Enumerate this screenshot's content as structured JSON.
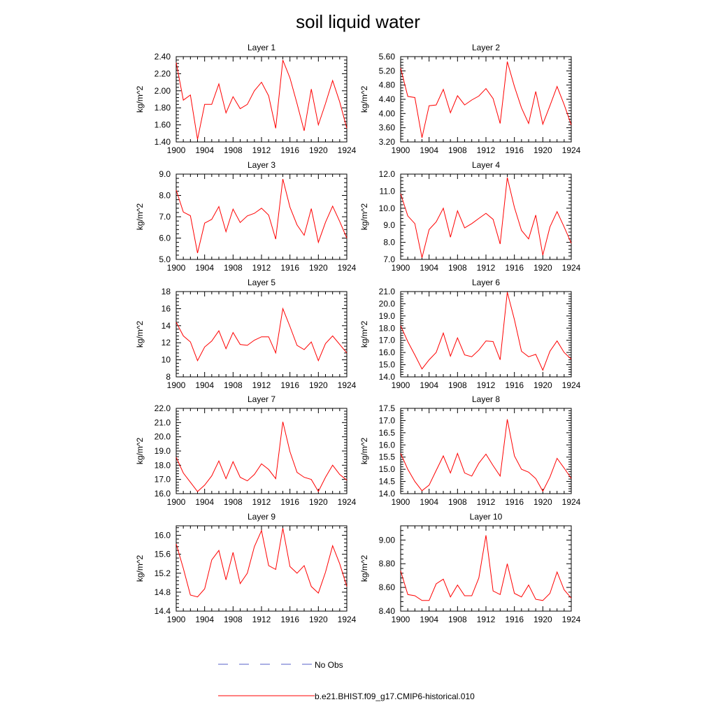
{
  "title": "soil liquid water",
  "legend": {
    "entries": [
      {
        "label": "No Obs",
        "color": "#5560c8",
        "style": "dashed"
      },
      {
        "label": "b.e21.BHIST.f09_g17.CMIP6-historical.010",
        "color": "#ff0000",
        "style": "solid"
      }
    ]
  },
  "chart_data": [
    {
      "type": "line",
      "title": "Layer 1",
      "ylabel": "kg/m^2",
      "xlim": [
        1900,
        1924
      ],
      "ylim": [
        1.4,
        2.4
      ],
      "x_ticks": [
        "1900",
        "1904",
        "1908",
        "1912",
        "1916",
        "1920",
        "1924"
      ],
      "y_ticks": [
        "1.40",
        "1.60",
        "1.80",
        "2.00",
        "2.20",
        "2.40"
      ],
      "series": [
        {
          "color": "#ff0000",
          "x": [
            1900,
            1901,
            1902,
            1903,
            1904,
            1905,
            1906,
            1907,
            1908,
            1909,
            1910,
            1911,
            1912,
            1913,
            1914,
            1915,
            1916,
            1917,
            1918,
            1919,
            1920,
            1921,
            1922,
            1923,
            1924
          ],
          "values": [
            2.33,
            1.89,
            1.95,
            1.43,
            1.84,
            1.84,
            2.08,
            1.74,
            1.93,
            1.79,
            1.84,
            2.0,
            2.1,
            1.94,
            1.56,
            2.36,
            2.15,
            1.85,
            1.53,
            2.02,
            1.6,
            1.85,
            2.12,
            1.87,
            1.56
          ]
        }
      ]
    },
    {
      "type": "line",
      "title": "Layer 2",
      "ylabel": "kg/m^2",
      "xlim": [
        1900,
        1924
      ],
      "ylim": [
        3.2,
        5.6
      ],
      "x_ticks": [
        "1900",
        "1904",
        "1908",
        "1912",
        "1916",
        "1920",
        "1924"
      ],
      "y_ticks": [
        "3.20",
        "3.60",
        "4.00",
        "4.40",
        "4.80",
        "5.20",
        "5.60"
      ],
      "series": [
        {
          "color": "#ff0000",
          "x": [
            1900,
            1901,
            1902,
            1903,
            1904,
            1905,
            1906,
            1907,
            1908,
            1909,
            1910,
            1911,
            1912,
            1913,
            1914,
            1915,
            1916,
            1917,
            1918,
            1919,
            1920,
            1921,
            1922,
            1923,
            1924
          ],
          "values": [
            5.28,
            4.48,
            4.45,
            3.32,
            4.22,
            4.24,
            4.68,
            4.02,
            4.5,
            4.24,
            4.38,
            4.49,
            4.7,
            4.42,
            3.72,
            5.46,
            4.76,
            4.16,
            3.72,
            4.62,
            3.7,
            4.22,
            4.76,
            4.25,
            3.68
          ]
        }
      ]
    },
    {
      "type": "line",
      "title": "Layer 3",
      "ylabel": "kg/m^2",
      "xlim": [
        1900,
        1924
      ],
      "ylim": [
        5,
        9
      ],
      "x_ticks": [
        "1900",
        "1904",
        "1908",
        "1912",
        "1916",
        "1920",
        "1924"
      ],
      "y_ticks": [
        "5.0",
        "6.0",
        "7.0",
        "8.0",
        "9.0"
      ],
      "series": [
        {
          "color": "#ff0000",
          "x": [
            1900,
            1901,
            1902,
            1903,
            1904,
            1905,
            1906,
            1907,
            1908,
            1909,
            1910,
            1911,
            1912,
            1913,
            1914,
            1915,
            1916,
            1917,
            1918,
            1919,
            1920,
            1921,
            1922,
            1923,
            1924
          ],
          "values": [
            8.25,
            7.22,
            7.05,
            5.3,
            6.7,
            6.88,
            7.48,
            6.3,
            7.36,
            6.73,
            7.04,
            7.16,
            7.4,
            7.08,
            5.95,
            8.77,
            7.45,
            6.62,
            6.13,
            7.38,
            5.8,
            6.74,
            7.5,
            6.78,
            6.0
          ]
        }
      ]
    },
    {
      "type": "line",
      "title": "Layer 4",
      "ylabel": "kg/m^2",
      "xlim": [
        1900,
        1924
      ],
      "ylim": [
        7,
        12
      ],
      "x_ticks": [
        "1900",
        "1904",
        "1908",
        "1912",
        "1916",
        "1920",
        "1924"
      ],
      "y_ticks": [
        "7.0",
        "8.0",
        "9.0",
        "10.0",
        "11.0",
        "12.0"
      ],
      "series": [
        {
          "color": "#ff0000",
          "x": [
            1900,
            1901,
            1902,
            1903,
            1904,
            1905,
            1906,
            1907,
            1908,
            1909,
            1910,
            1911,
            1912,
            1913,
            1914,
            1915,
            1916,
            1917,
            1918,
            1919,
            1920,
            1921,
            1922,
            1923,
            1924
          ],
          "values": [
            10.85,
            9.55,
            9.1,
            7.1,
            8.75,
            9.2,
            10.0,
            8.3,
            9.85,
            8.85,
            9.1,
            9.4,
            9.7,
            9.35,
            7.9,
            11.8,
            10.05,
            8.7,
            8.2,
            9.6,
            7.25,
            8.9,
            9.8,
            8.9,
            7.95
          ]
        }
      ]
    },
    {
      "type": "line",
      "title": "Layer 5",
      "ylabel": "kg/m^2",
      "xlim": [
        1900,
        1924
      ],
      "ylim": [
        8,
        18
      ],
      "x_ticks": [
        "1900",
        "1904",
        "1908",
        "1912",
        "1916",
        "1920",
        "1924"
      ],
      "y_ticks": [
        "8",
        "10",
        "12",
        "14",
        "16",
        "18"
      ],
      "series": [
        {
          "color": "#ff0000",
          "x": [
            1900,
            1901,
            1902,
            1903,
            1904,
            1905,
            1906,
            1907,
            1908,
            1909,
            1910,
            1911,
            1912,
            1913,
            1914,
            1915,
            1916,
            1917,
            1918,
            1919,
            1920,
            1921,
            1922,
            1923,
            1924
          ],
          "values": [
            14.4,
            12.8,
            12.1,
            9.9,
            11.5,
            12.2,
            13.4,
            11.3,
            13.2,
            11.8,
            11.7,
            12.3,
            12.7,
            12.7,
            10.8,
            16.0,
            13.9,
            11.7,
            11.2,
            12.1,
            9.9,
            11.9,
            12.8,
            11.8,
            10.8
          ]
        }
      ]
    },
    {
      "type": "line",
      "title": "Layer 6",
      "ylabel": "kg/m^2",
      "xlim": [
        1900,
        1924
      ],
      "ylim": [
        14,
        21
      ],
      "x_ticks": [
        "1900",
        "1904",
        "1908",
        "1912",
        "1916",
        "1920",
        "1924"
      ],
      "y_ticks": [
        "14.0",
        "15.0",
        "16.0",
        "17.0",
        "18.0",
        "19.0",
        "20.0",
        "21.0"
      ],
      "series": [
        {
          "color": "#ff0000",
          "x": [
            1900,
            1901,
            1902,
            1903,
            1904,
            1905,
            1906,
            1907,
            1908,
            1909,
            1910,
            1911,
            1912,
            1913,
            1914,
            1915,
            1916,
            1917,
            1918,
            1919,
            1920,
            1921,
            1922,
            1923,
            1924
          ],
          "values": [
            18.2,
            16.9,
            15.8,
            14.65,
            15.4,
            16.0,
            17.6,
            15.7,
            17.2,
            15.8,
            15.65,
            16.2,
            16.95,
            16.9,
            15.4,
            20.95,
            18.7,
            16.1,
            15.65,
            15.85,
            14.55,
            16.1,
            16.95,
            16.0,
            15.45
          ]
        }
      ]
    },
    {
      "type": "line",
      "title": "Layer 7",
      "ylabel": "kg/m^2",
      "xlim": [
        1900,
        1924
      ],
      "ylim": [
        16,
        22
      ],
      "x_ticks": [
        "1900",
        "1904",
        "1908",
        "1912",
        "1916",
        "1920",
        "1924"
      ],
      "y_ticks": [
        "16.0",
        "17.0",
        "18.0",
        "19.0",
        "20.0",
        "21.0",
        "22.0"
      ],
      "series": [
        {
          "color": "#ff0000",
          "x": [
            1900,
            1901,
            1902,
            1903,
            1904,
            1905,
            1906,
            1907,
            1908,
            1909,
            1910,
            1911,
            1912,
            1913,
            1914,
            1915,
            1916,
            1917,
            1918,
            1919,
            1920,
            1921,
            1922,
            1923,
            1924
          ],
          "values": [
            18.55,
            17.45,
            16.8,
            16.15,
            16.6,
            17.25,
            18.3,
            17.05,
            18.25,
            17.15,
            16.9,
            17.35,
            18.1,
            17.7,
            17.05,
            21.05,
            18.95,
            17.5,
            17.15,
            17.0,
            16.15,
            17.15,
            18.0,
            17.35,
            16.95
          ]
        }
      ]
    },
    {
      "type": "line",
      "title": "Layer 8",
      "ylabel": "kg/m^2",
      "xlim": [
        1900,
        1924
      ],
      "ylim": [
        14,
        17.5
      ],
      "x_ticks": [
        "1900",
        "1904",
        "1908",
        "1912",
        "1916",
        "1920",
        "1924"
      ],
      "y_ticks": [
        "14.0",
        "14.5",
        "15.0",
        "15.5",
        "16.0",
        "16.5",
        "17.0",
        "17.5"
      ],
      "series": [
        {
          "color": "#ff0000",
          "x": [
            1900,
            1901,
            1902,
            1903,
            1904,
            1905,
            1906,
            1907,
            1908,
            1909,
            1910,
            1911,
            1912,
            1913,
            1914,
            1915,
            1916,
            1917,
            1918,
            1919,
            1920,
            1921,
            1922,
            1923,
            1924
          ],
          "values": [
            15.65,
            15.0,
            14.5,
            14.12,
            14.35,
            14.95,
            15.55,
            14.85,
            15.65,
            14.85,
            14.72,
            15.25,
            15.62,
            15.15,
            14.72,
            17.05,
            15.55,
            15.0,
            14.88,
            14.62,
            14.1,
            14.68,
            15.45,
            15.05,
            14.62
          ]
        }
      ]
    },
    {
      "type": "line",
      "title": "Layer 9",
      "ylabel": "kg/m^2",
      "xlim": [
        1900,
        1924
      ],
      "ylim": [
        14.4,
        16.2
      ],
      "x_ticks": [
        "1900",
        "1904",
        "1908",
        "1912",
        "1916",
        "1920",
        "1924"
      ],
      "y_ticks": [
        "14.4",
        "14.8",
        "15.2",
        "15.6",
        "16.0"
      ],
      "series": [
        {
          "color": "#ff0000",
          "x": [
            1900,
            1901,
            1902,
            1903,
            1904,
            1905,
            1906,
            1907,
            1908,
            1909,
            1910,
            1911,
            1912,
            1913,
            1914,
            1915,
            1916,
            1917,
            1918,
            1919,
            1920,
            1921,
            1922,
            1923,
            1924
          ],
          "values": [
            15.82,
            15.3,
            14.74,
            14.7,
            14.87,
            15.48,
            15.68,
            15.06,
            15.64,
            14.98,
            15.2,
            15.76,
            16.1,
            15.36,
            15.28,
            16.15,
            15.34,
            15.2,
            15.36,
            14.92,
            14.78,
            15.22,
            15.78,
            15.4,
            14.92
          ]
        }
      ]
    },
    {
      "type": "line",
      "title": "Layer 10",
      "ylabel": "kg/m^2",
      "xlim": [
        1900,
        1924
      ],
      "ylim": [
        8.4,
        9.12
      ],
      "x_ticks": [
        "1900",
        "1904",
        "1908",
        "1912",
        "1916",
        "1920",
        "1924"
      ],
      "y_ticks": [
        "8.40",
        "8.60",
        "8.80",
        "9.00"
      ],
      "series": [
        {
          "color": "#ff0000",
          "x": [
            1900,
            1901,
            1902,
            1903,
            1904,
            1905,
            1906,
            1907,
            1908,
            1909,
            1910,
            1911,
            1912,
            1913,
            1914,
            1915,
            1916,
            1917,
            1918,
            1919,
            1920,
            1921,
            1922,
            1923,
            1924
          ],
          "values": [
            8.74,
            8.54,
            8.53,
            8.49,
            8.49,
            8.63,
            8.67,
            8.52,
            8.62,
            8.53,
            8.53,
            8.68,
            9.04,
            8.57,
            8.54,
            8.8,
            8.55,
            8.52,
            8.62,
            8.5,
            8.49,
            8.55,
            8.73,
            8.58,
            8.51
          ]
        }
      ]
    }
  ]
}
